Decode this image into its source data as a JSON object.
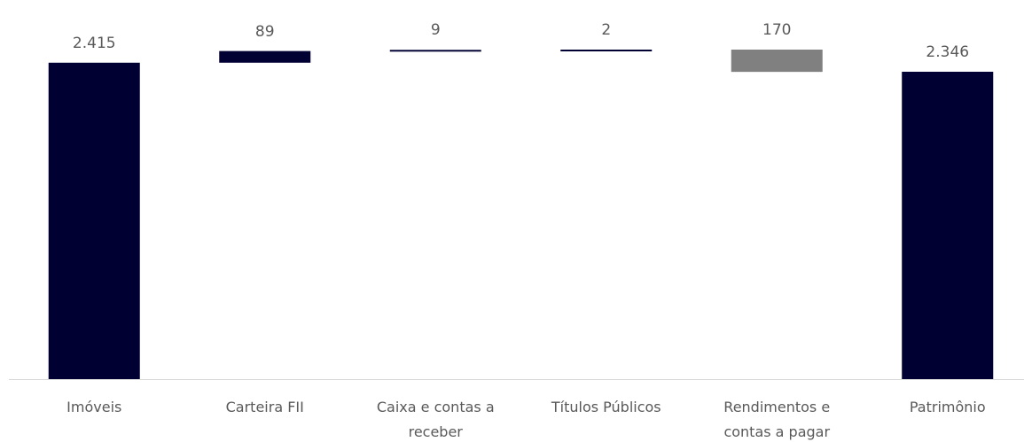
{
  "chart_data": {
    "type": "waterfall",
    "categories": [
      "Imóveis",
      "Carteira FII",
      "Caixa e contas a receber",
      "Títulos Públicos",
      "Rendimentos e contas a pagar",
      "Patrimônio"
    ],
    "values": [
      2415,
      89,
      9,
      2,
      -170,
      2346
    ],
    "value_labels": [
      "2.415",
      "89",
      "9",
      "2",
      "170",
      "2.346"
    ],
    "measure": [
      "absolute",
      "relative",
      "relative",
      "relative",
      "relative",
      "total"
    ],
    "colors": [
      "#000033",
      "#000033",
      "#000033",
      "#000033",
      "#808080",
      "#000033"
    ]
  }
}
